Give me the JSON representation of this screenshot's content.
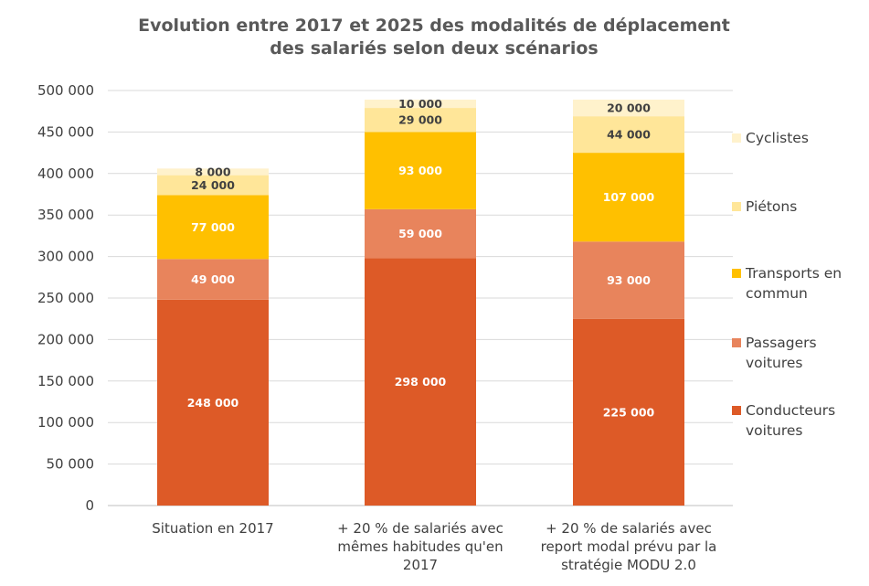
{
  "chart_data": {
    "type": "bar",
    "stacked": true,
    "title": [
      "Evolution entre 2017 et 2025 des modalités de déplacement",
      "des salariés selon deux scénarios"
    ],
    "categories": [
      [
        "Situation en 2017"
      ],
      [
        "+ 20 % de salariés avec",
        "mêmes habitudes qu'en",
        "2017"
      ],
      [
        "+ 20 % de salariés avec",
        "report modal prévu par la",
        "stratégie MODU 2.0"
      ]
    ],
    "series": [
      {
        "name": [
          "Conducteurs",
          "voitures"
        ],
        "color": "#DD5A27",
        "label_color": "#ffffff",
        "values": [
          248000,
          298000,
          225000
        ],
        "labels": [
          "248 000",
          "298 000",
          "225 000"
        ]
      },
      {
        "name": [
          "Passagers",
          "voitures"
        ],
        "color": "#E8845C",
        "label_color": "#ffffff",
        "values": [
          49000,
          59000,
          93000
        ],
        "labels": [
          "49 000",
          "59 000",
          "93 000"
        ]
      },
      {
        "name": [
          "Transports en",
          "commun"
        ],
        "color": "#FFC000",
        "label_color": "#ffffff",
        "values": [
          77000,
          93000,
          107000
        ],
        "labels": [
          "77 000",
          "93 000",
          "107 000"
        ]
      },
      {
        "name": [
          "Piétons"
        ],
        "color": "#FFE699",
        "label_color": "#404040",
        "values": [
          24000,
          29000,
          44000
        ],
        "labels": [
          "24 000",
          "29 000",
          "44 000"
        ]
      },
      {
        "name": [
          "Cyclistes"
        ],
        "color": "#FFF2CC",
        "label_color": "#404040",
        "values": [
          8000,
          10000,
          20000
        ],
        "labels": [
          "8 000",
          "10 000",
          "20 000"
        ]
      }
    ],
    "yticks": [
      0,
      50000,
      100000,
      150000,
      200000,
      250000,
      300000,
      350000,
      400000,
      450000,
      500000
    ],
    "ytick_labels": [
      "0",
      "50 000",
      "100 000",
      "150 000",
      "200 000",
      "250 000",
      "300 000",
      "350 000",
      "400 000",
      "450 000",
      "500 000"
    ],
    "ylim": [
      0,
      500000
    ],
    "grid": true,
    "legend_position": "right",
    "legend_order": "top-to-bottom reversed",
    "xlabel": "",
    "ylabel": ""
  }
}
